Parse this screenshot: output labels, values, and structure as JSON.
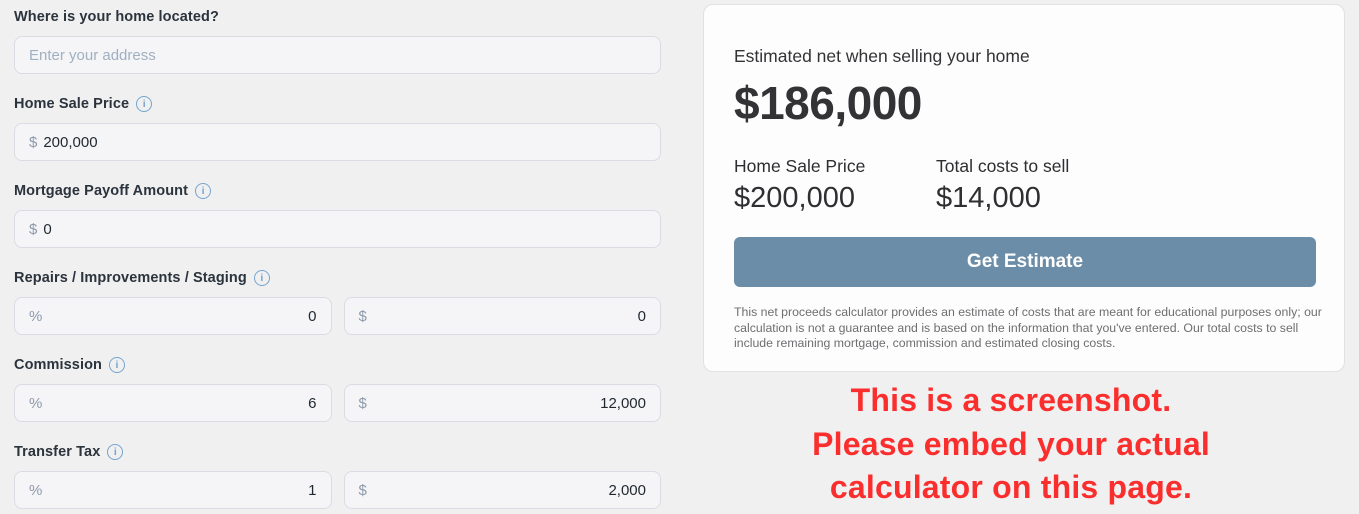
{
  "form": {
    "address": {
      "label": "Where is your home located?",
      "placeholder": "Enter your address"
    },
    "fields": [
      {
        "label": "Home Sale Price",
        "prefix": "$",
        "value": "200,000"
      },
      {
        "label": "Mortgage Payoff Amount",
        "prefix": "$",
        "value": "0"
      },
      {
        "label": "Repairs / Improvements / Staging",
        "percent_prefix": "%",
        "percent_value": "0",
        "amount_prefix": "$",
        "amount_value": "0"
      },
      {
        "label": "Commission",
        "percent_prefix": "%",
        "percent_value": "6",
        "amount_prefix": "$",
        "amount_value": "12,000"
      },
      {
        "label": "Transfer Tax",
        "percent_prefix": "%",
        "percent_value": "1",
        "amount_prefix": "$",
        "amount_value": "2,000"
      }
    ],
    "info_icon_glyph": "i"
  },
  "summary": {
    "title": "Estimated net when selling your home",
    "net_amount": "$186,000",
    "columns": [
      {
        "label": "Home Sale Price",
        "value": "$200,000"
      },
      {
        "label": "Total costs to sell",
        "value": "$14,000"
      }
    ],
    "button_label": "Get Estimate",
    "disclaimer": "This net proceeds calculator provides an estimate of costs that are meant for educational purposes only; our calculation is not a guarantee and is based on the information that you've entered. Our total costs to sell include remaining mortgage, commission and estimated closing costs."
  },
  "overlay": {
    "line1": "This is a screenshot.",
    "line2": "Please embed your actual",
    "line3": "calculator on this page."
  },
  "colors": {
    "page_background": "#f0f0f1",
    "button": "#6c8da7",
    "info_icon": "#74a4cf",
    "warning_red": "#fb2e2e"
  }
}
